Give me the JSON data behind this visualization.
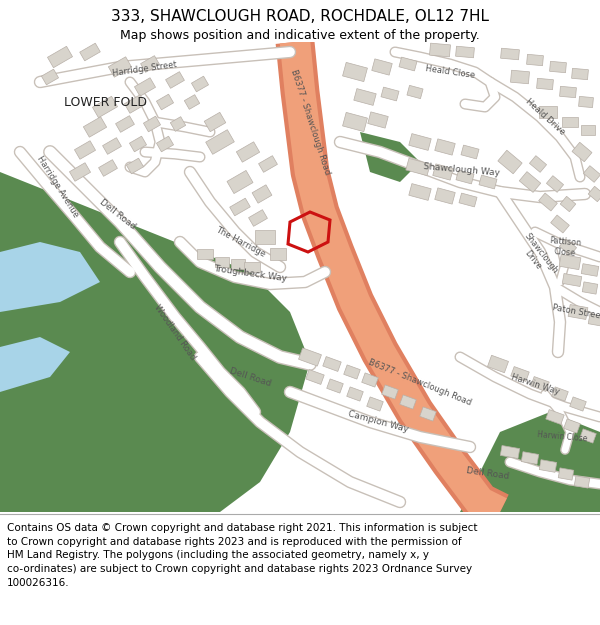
{
  "title": "333, SHAWCLOUGH ROAD, ROCHDALE, OL12 7HL",
  "subtitle": "Map shows position and indicative extent of the property.",
  "footer_text": "Contains OS data © Crown copyright and database right 2021. This information is subject\nto Crown copyright and database rights 2023 and is reproduced with the permission of\nHM Land Registry. The polygons (including the associated geometry, namely x, y\nco-ordinates) are subject to Crown copyright and database rights 2023 Ordnance Survey\n100026316.",
  "title_fontsize": 11,
  "subtitle_fontsize": 9,
  "footer_fontsize": 7.5,
  "fig_width": 6.0,
  "fig_height": 6.25,
  "map_bg": "#f5f3f0",
  "header_bg": "#ffffff",
  "footer_bg": "#ffffff",
  "road_main_color": "#f0a07a",
  "road_main_edge": "#e08060",
  "road_minor_color": "#ffffff",
  "road_minor_edge": "#c8c0b8",
  "building_fill": "#d8d4cc",
  "building_edge": "#b8b0a8",
  "green_dark": "#5a8a50",
  "green_med": "#6a9a60",
  "water_color": "#a8d4e8",
  "highlight_color": "#cc1111",
  "text_color": "#333333",
  "label_color": "#555555"
}
